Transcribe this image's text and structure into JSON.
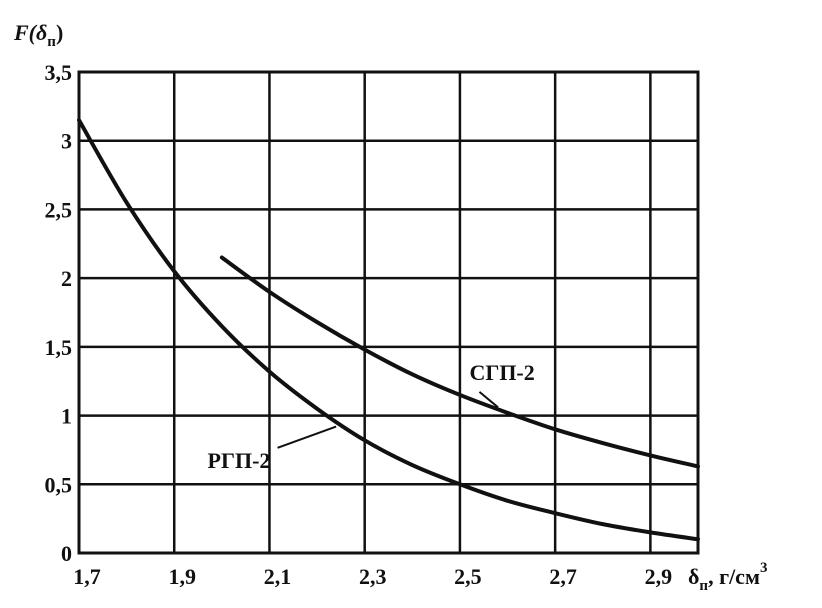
{
  "chart_data": {
    "type": "line",
    "ylabel_main": "F(δ",
    "ylabel_sub": "п",
    "ylabel_close": ")",
    "xlabel_main": "δ",
    "xlabel_sub": "п",
    "xlabel_unit": ", г/см",
    "xlabel_sup": "3",
    "xlim": [
      1.7,
      3.0
    ],
    "ylim": [
      0,
      3.5
    ],
    "grid": true,
    "xticks": [
      {
        "v": 1.7,
        "label": "1,7"
      },
      {
        "v": 1.9,
        "label": "1,9"
      },
      {
        "v": 2.1,
        "label": "2,1"
      },
      {
        "v": 2.3,
        "label": "2,3"
      },
      {
        "v": 2.5,
        "label": "2,5"
      },
      {
        "v": 2.7,
        "label": "2,7"
      },
      {
        "v": 2.9,
        "label": "2,9"
      }
    ],
    "yticks": [
      {
        "v": 0,
        "label": "0"
      },
      {
        "v": 0.5,
        "label": "0,5"
      },
      {
        "v": 1,
        "label": "1"
      },
      {
        "v": 1.5,
        "label": "1,5"
      },
      {
        "v": 2,
        "label": "2"
      },
      {
        "v": 2.5,
        "label": "2,5"
      },
      {
        "v": 3,
        "label": "3"
      },
      {
        "v": 3.5,
        "label": "3,5"
      }
    ],
    "series": [
      {
        "name": "РГП-2",
        "x": [
          1.7,
          1.8,
          1.9,
          2.0,
          2.1,
          2.2,
          2.3,
          2.4,
          2.5,
          2.6,
          2.7,
          2.8,
          2.9,
          3.0
        ],
        "y": [
          3.15,
          2.55,
          2.05,
          1.65,
          1.32,
          1.05,
          0.82,
          0.64,
          0.5,
          0.38,
          0.29,
          0.21,
          0.15,
          0.1
        ]
      },
      {
        "name": "СГП-2",
        "x": [
          2.0,
          2.1,
          2.2,
          2.3,
          2.4,
          2.5,
          2.6,
          2.7,
          2.8,
          2.9,
          3.0
        ],
        "y": [
          2.15,
          1.9,
          1.68,
          1.48,
          1.3,
          1.15,
          1.02,
          0.9,
          0.8,
          0.71,
          0.63
        ]
      }
    ],
    "annotations": [
      {
        "series": "СГП-2",
        "label_x": 2.52,
        "label_y": 1.26,
        "point_x": 2.58,
        "point_y": 1.06
      },
      {
        "series": "РГП-2",
        "label_x": 1.97,
        "label_y": 0.62,
        "point_x": 2.24,
        "point_y": 0.92
      }
    ]
  }
}
